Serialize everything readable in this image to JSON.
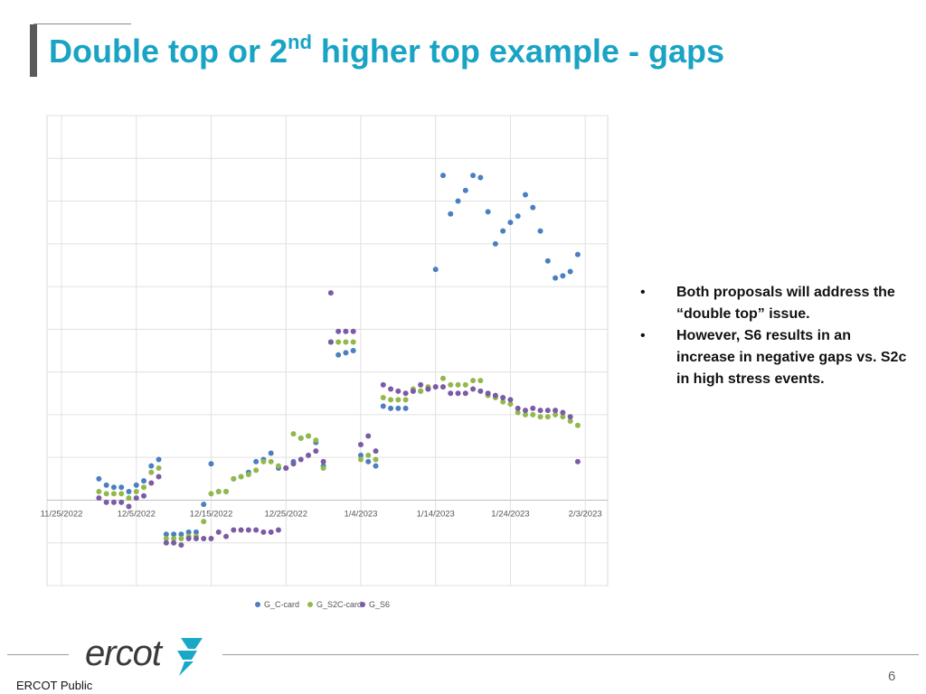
{
  "slide": {
    "title_pre": "Double top or 2",
    "title_sup": "nd",
    "title_post": " higher top example - gaps",
    "bullets": [
      "Both proposals will address the “double top” issue.",
      "However, S6 results in an increase in negative gaps vs. S2c in high stress events."
    ],
    "bullet_glyph": "•",
    "page_number": "6",
    "footer": "ERCOT Public",
    "logo_text": "ercot"
  },
  "colors": {
    "title": "#19a3c4",
    "series": [
      "#4a7fc0",
      "#93b84a",
      "#7b5aa6"
    ],
    "logo": "#3a3a3a",
    "logo_mark": "#1aa8c8"
  },
  "chart_data": {
    "type": "scatter",
    "x_tick_labels": [
      "11/25/2022",
      "12/5/2022",
      "12/15/2022",
      "12/25/2022",
      "1/4/2023",
      "1/14/2023",
      "1/24/2023",
      "2/3/2023"
    ],
    "x_range": [
      "2022-11-25",
      "2023-02-06"
    ],
    "y_range": [
      -2,
      9
    ],
    "y_gridlines": [
      -2,
      -1,
      0,
      1,
      2,
      3,
      4,
      5,
      6,
      7,
      8,
      9
    ],
    "grid": true,
    "legend_position": "bottom",
    "series": [
      {
        "name": "G_C-card",
        "points": [
          [
            "2022-11-30",
            0.5
          ],
          [
            "2022-12-01",
            0.35
          ],
          [
            "2022-12-02",
            0.3
          ],
          [
            "2022-12-03",
            0.3
          ],
          [
            "2022-12-04",
            0.2
          ],
          [
            "2022-12-05",
            0.35
          ],
          [
            "2022-12-06",
            0.45
          ],
          [
            "2022-12-07",
            0.8
          ],
          [
            "2022-12-08",
            0.95
          ],
          [
            "2022-12-09",
            -0.8
          ],
          [
            "2022-12-10",
            -0.8
          ],
          [
            "2022-12-11",
            -0.8
          ],
          [
            "2022-12-12",
            -0.75
          ],
          [
            "2022-12-13",
            -0.75
          ],
          [
            "2022-12-14",
            -0.1
          ],
          [
            "2022-12-15",
            0.85
          ],
          [
            "2022-12-16",
            0.2
          ],
          [
            "2022-12-17",
            0.2
          ],
          [
            "2022-12-18",
            0.5
          ],
          [
            "2022-12-19",
            0.55
          ],
          [
            "2022-12-20",
            0.65
          ],
          [
            "2022-12-21",
            0.9
          ],
          [
            "2022-12-22",
            0.95
          ],
          [
            "2022-12-23",
            1.1
          ],
          [
            "2022-12-24",
            0.75
          ],
          [
            "2022-12-25",
            0.75
          ],
          [
            "2022-12-26",
            0.9
          ],
          [
            "2022-12-27",
            1.45
          ],
          [
            "2022-12-28",
            1.5
          ],
          [
            "2022-12-29",
            1.35
          ],
          [
            "2022-12-30",
            0.8
          ],
          [
            "2022-12-31",
            3.7
          ],
          [
            "2023-01-01",
            3.4
          ],
          [
            "2023-01-02",
            3.45
          ],
          [
            "2023-01-03",
            3.5
          ],
          [
            "2023-01-04",
            1.05
          ],
          [
            "2023-01-05",
            0.9
          ],
          [
            "2023-01-06",
            0.8
          ],
          [
            "2023-01-07",
            2.2
          ],
          [
            "2023-01-08",
            2.15
          ],
          [
            "2023-01-09",
            2.15
          ],
          [
            "2023-01-10",
            2.15
          ],
          [
            "2023-01-11",
            2.55
          ],
          [
            "2023-01-12",
            2.55
          ],
          [
            "2023-01-13",
            2.6
          ],
          [
            "2023-01-14",
            5.4
          ],
          [
            "2023-01-15",
            7.6
          ],
          [
            "2023-01-16",
            6.7
          ],
          [
            "2023-01-17",
            7.0
          ],
          [
            "2023-01-18",
            7.25
          ],
          [
            "2023-01-19",
            7.6
          ],
          [
            "2023-01-20",
            7.55
          ],
          [
            "2023-01-21",
            6.75
          ],
          [
            "2023-01-22",
            6.0
          ],
          [
            "2023-01-23",
            6.3
          ],
          [
            "2023-01-24",
            6.5
          ],
          [
            "2023-01-25",
            6.65
          ],
          [
            "2023-01-26",
            7.15
          ],
          [
            "2023-01-27",
            6.85
          ],
          [
            "2023-01-28",
            6.3
          ],
          [
            "2023-01-29",
            5.6
          ],
          [
            "2023-01-30",
            5.2
          ],
          [
            "2023-01-31",
            5.25
          ],
          [
            "2023-02-01",
            5.35
          ],
          [
            "2023-02-02",
            5.75
          ]
        ]
      },
      {
        "name": "G_S2C-card",
        "points": [
          [
            "2022-11-30",
            0.2
          ],
          [
            "2022-12-01",
            0.15
          ],
          [
            "2022-12-02",
            0.15
          ],
          [
            "2022-12-03",
            0.15
          ],
          [
            "2022-12-04",
            0.05
          ],
          [
            "2022-12-05",
            0.2
          ],
          [
            "2022-12-06",
            0.3
          ],
          [
            "2022-12-07",
            0.65
          ],
          [
            "2022-12-08",
            0.75
          ],
          [
            "2022-12-09",
            -0.9
          ],
          [
            "2022-12-10",
            -0.9
          ],
          [
            "2022-12-11",
            -0.9
          ],
          [
            "2022-12-12",
            -0.85
          ],
          [
            "2022-12-13",
            -0.85
          ],
          [
            "2022-12-14",
            -0.5
          ],
          [
            "2022-12-15",
            0.15
          ],
          [
            "2022-12-16",
            0.2
          ],
          [
            "2022-12-17",
            0.2
          ],
          [
            "2022-12-18",
            0.5
          ],
          [
            "2022-12-19",
            0.55
          ],
          [
            "2022-12-20",
            0.6
          ],
          [
            "2022-12-21",
            0.7
          ],
          [
            "2022-12-22",
            0.9
          ],
          [
            "2022-12-23",
            0.9
          ],
          [
            "2022-12-24",
            0.8
          ],
          [
            "2022-12-25",
            0.75
          ],
          [
            "2022-12-26",
            1.55
          ],
          [
            "2022-12-27",
            1.45
          ],
          [
            "2022-12-28",
            1.5
          ],
          [
            "2022-12-29",
            1.4
          ],
          [
            "2022-12-30",
            0.75
          ],
          [
            "2022-12-31",
            3.7
          ],
          [
            "2023-01-01",
            3.7
          ],
          [
            "2023-01-02",
            3.7
          ],
          [
            "2023-01-03",
            3.7
          ],
          [
            "2023-01-04",
            0.95
          ],
          [
            "2023-01-05",
            1.05
          ],
          [
            "2023-01-06",
            0.95
          ],
          [
            "2023-01-07",
            2.4
          ],
          [
            "2023-01-08",
            2.35
          ],
          [
            "2023-01-09",
            2.35
          ],
          [
            "2023-01-10",
            2.35
          ],
          [
            "2023-01-11",
            2.6
          ],
          [
            "2023-01-12",
            2.55
          ],
          [
            "2023-01-13",
            2.65
          ],
          [
            "2023-01-14",
            2.65
          ],
          [
            "2023-01-15",
            2.85
          ],
          [
            "2023-01-16",
            2.7
          ],
          [
            "2023-01-17",
            2.7
          ],
          [
            "2023-01-18",
            2.7
          ],
          [
            "2023-01-19",
            2.8
          ],
          [
            "2023-01-20",
            2.8
          ],
          [
            "2023-01-21",
            2.45
          ],
          [
            "2023-01-22",
            2.4
          ],
          [
            "2023-01-23",
            2.3
          ],
          [
            "2023-01-24",
            2.25
          ],
          [
            "2023-01-25",
            2.05
          ],
          [
            "2023-01-26",
            2.0
          ],
          [
            "2023-01-27",
            2.0
          ],
          [
            "2023-01-28",
            1.95
          ],
          [
            "2023-01-29",
            1.95
          ],
          [
            "2023-01-30",
            2.0
          ],
          [
            "2023-01-31",
            1.95
          ],
          [
            "2023-02-01",
            1.85
          ],
          [
            "2023-02-02",
            1.75
          ]
        ]
      },
      {
        "name": "G_S6",
        "points": [
          [
            "2022-11-30",
            0.05
          ],
          [
            "2022-12-01",
            -0.05
          ],
          [
            "2022-12-02",
            -0.05
          ],
          [
            "2022-12-03",
            -0.05
          ],
          [
            "2022-12-04",
            -0.15
          ],
          [
            "2022-12-05",
            0.05
          ],
          [
            "2022-12-06",
            0.1
          ],
          [
            "2022-12-07",
            0.4
          ],
          [
            "2022-12-08",
            0.55
          ],
          [
            "2022-12-09",
            -1.0
          ],
          [
            "2022-12-10",
            -1.0
          ],
          [
            "2022-12-11",
            -1.05
          ],
          [
            "2022-12-12",
            -0.9
          ],
          [
            "2022-12-13",
            -0.9
          ],
          [
            "2022-12-14",
            -0.9
          ],
          [
            "2022-12-15",
            -0.9
          ],
          [
            "2022-12-16",
            -0.75
          ],
          [
            "2022-12-17",
            -0.85
          ],
          [
            "2022-12-18",
            -0.7
          ],
          [
            "2022-12-19",
            -0.7
          ],
          [
            "2022-12-20",
            -0.7
          ],
          [
            "2022-12-21",
            -0.7
          ],
          [
            "2022-12-22",
            -0.75
          ],
          [
            "2022-12-23",
            -0.75
          ],
          [
            "2022-12-24",
            -0.7
          ],
          [
            "2022-12-25",
            0.75
          ],
          [
            "2022-12-26",
            0.85
          ],
          [
            "2022-12-27",
            0.95
          ],
          [
            "2022-12-28",
            1.05
          ],
          [
            "2022-12-29",
            1.15
          ],
          [
            "2022-12-30",
            0.9
          ],
          [
            "2022-12-31",
            3.7
          ],
          [
            "2023-01-01",
            3.95
          ],
          [
            "2023-01-02",
            3.95
          ],
          [
            "2023-01-03",
            3.95
          ],
          [
            "2023-01-04",
            1.3
          ],
          [
            "2023-01-05",
            1.5
          ],
          [
            "2023-01-06",
            1.15
          ],
          [
            "2023-01-07",
            2.7
          ],
          [
            "2023-01-08",
            2.6
          ],
          [
            "2023-01-09",
            2.55
          ],
          [
            "2023-01-10",
            2.5
          ],
          [
            "2023-01-11",
            2.55
          ],
          [
            "2023-01-12",
            2.7
          ],
          [
            "2023-01-13",
            2.6
          ],
          [
            "2023-01-14",
            2.65
          ],
          [
            "2023-01-15",
            2.65
          ],
          [
            "2023-01-16",
            2.5
          ],
          [
            "2023-01-17",
            2.5
          ],
          [
            "2023-01-18",
            2.5
          ],
          [
            "2023-01-19",
            2.6
          ],
          [
            "2023-01-20",
            2.55
          ],
          [
            "2023-01-21",
            2.5
          ],
          [
            "2023-01-22",
            2.45
          ],
          [
            "2023-01-23",
            2.4
          ],
          [
            "2023-01-24",
            2.35
          ],
          [
            "2023-01-25",
            2.15
          ],
          [
            "2023-01-26",
            2.1
          ],
          [
            "2023-01-27",
            2.15
          ],
          [
            "2023-01-28",
            2.1
          ],
          [
            "2023-01-29",
            2.1
          ],
          [
            "2023-01-30",
            2.1
          ],
          [
            "2023-01-31",
            2.05
          ],
          [
            "2023-02-01",
            1.95
          ],
          [
            "2023-02-02",
            0.9
          ],
          [
            "2022-12-31",
            4.85
          ]
        ]
      }
    ]
  }
}
